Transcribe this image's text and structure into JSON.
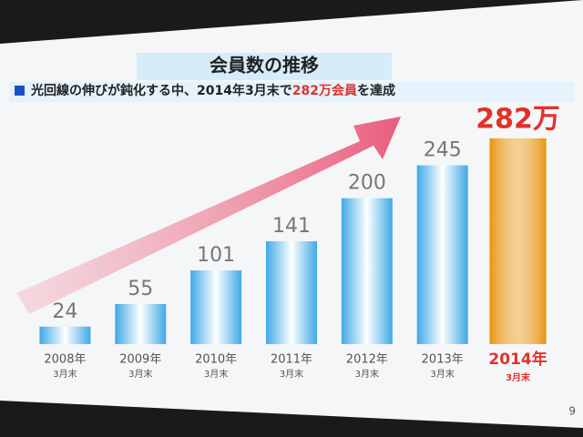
{
  "title": "会員数の推移",
  "subtitle_parts": [
    "光回線の伸びが鈍化する中、2014年3月末で",
    "282万会員",
    "を達成"
  ],
  "page_number": "9",
  "chart_data": {
    "type": "bar",
    "categories": [
      "2008年",
      "2009年",
      "2010年",
      "2011年",
      "2012年",
      "2013年",
      "2014年"
    ],
    "category_notes": [
      "3月末",
      "3月末",
      "3月末",
      "3月末",
      "3月末",
      "3月末",
      "3月末"
    ],
    "values": [
      24,
      55,
      101,
      141,
      200,
      245,
      282
    ],
    "value_labels": [
      "24",
      "55",
      "101",
      "141",
      "200",
      "245",
      "282万"
    ],
    "colors": [
      "#3fa9e6",
      "#3fa9e6",
      "#3fa9e6",
      "#3fa9e6",
      "#3fa9e6",
      "#3fa9e6",
      "#e8940f"
    ],
    "label_colors": [
      "#777777",
      "#777777",
      "#777777",
      "#777777",
      "#777777",
      "#777777",
      "#e0322a"
    ]
  }
}
